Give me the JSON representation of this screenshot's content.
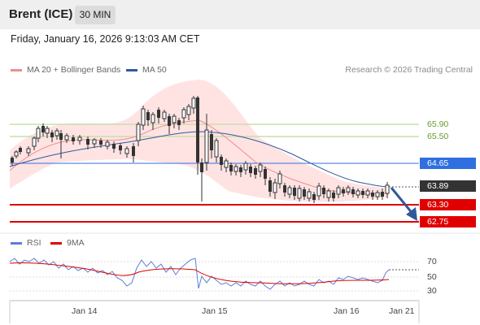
{
  "header": {
    "title": "Brent (ICE)",
    "timeframe": "30 MIN"
  },
  "datetime": "Friday, January 16, 2026 9:13:03 AM CET",
  "legend": [
    {
      "label": "MA 20 + Bollinger Bands",
      "color": "#f08d8d"
    },
    {
      "label": "MA 50",
      "color": "#2e5a9a"
    }
  ],
  "copyright": "Research © 2026 Trading Central",
  "levels": {
    "r2": {
      "value": "65.90",
      "color": "#8ab23c"
    },
    "r1": {
      "value": "65.50",
      "color": "#8ab23c"
    },
    "pivot": {
      "value": "64.65",
      "color": "#2f6fe0"
    },
    "last": {
      "value": "63.89",
      "color": "#333333"
    },
    "s1": {
      "value": "63.30",
      "color": "#e00000"
    },
    "s2": {
      "value": "62.75",
      "color": "#e00000"
    }
  },
  "rsi_legend": [
    {
      "label": "RSI",
      "color": "#5b7fd6"
    },
    {
      "label": "9MA",
      "color": "#e00000"
    }
  ],
  "rsi_levels": [
    "70",
    "50",
    "30"
  ],
  "x_labels": [
    "Jan 14",
    "Jan 15",
    "Jan 16",
    "Jan 21"
  ],
  "arrow_direction": "down"
}
